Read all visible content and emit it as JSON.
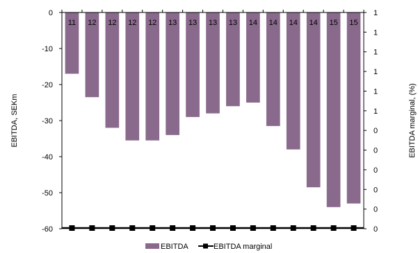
{
  "chart_data": {
    "type": "bar",
    "categories": [
      "11",
      "12",
      "12",
      "12",
      "12",
      "13",
      "13",
      "13",
      "13",
      "14",
      "14",
      "14",
      "14",
      "15",
      "15"
    ],
    "series": [
      {
        "name": "EBITDA",
        "type": "bar",
        "axis": "left",
        "color": "#8a6a8c",
        "values": [
          -17,
          -23.5,
          -32,
          -35.5,
          -35.5,
          -34,
          -29,
          -28,
          -26,
          -25,
          -31.5,
          -38,
          -48.5,
          -54,
          -53
        ]
      },
      {
        "name": "EBITDA marginal",
        "type": "line",
        "axis": "right",
        "color": "#000000",
        "values": [
          0,
          0,
          0,
          0,
          0,
          0,
          0,
          0,
          0,
          0,
          0,
          0,
          0,
          0,
          0
        ]
      }
    ],
    "ylabel": "EBITDA, SEKm",
    "ylabel_right": "EBITDA marginal, (%)",
    "ylim": [
      -60,
      0
    ],
    "y_ticks": [
      "0",
      "-10",
      "-20",
      "-30",
      "-40",
      "-50",
      "-60"
    ],
    "y_right_ticks": [
      "1",
      "1",
      "1",
      "1",
      "1",
      "1",
      "0",
      "0",
      "0",
      "0",
      "0",
      "0"
    ],
    "grid": false,
    "legend": "bottom-center"
  }
}
